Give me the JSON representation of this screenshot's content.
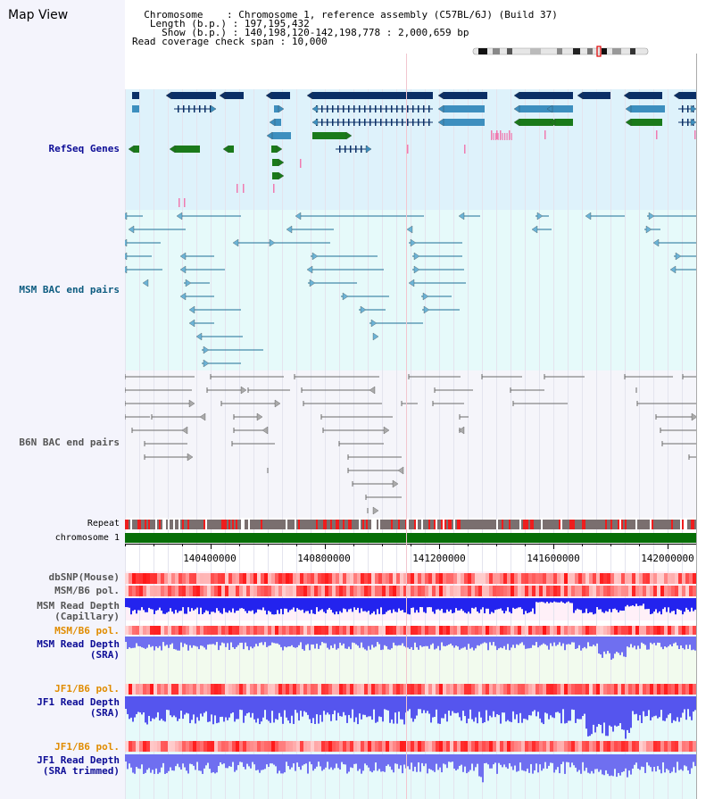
{
  "map_title": "Map View",
  "header": {
    "chromosome_label": "Chromosome",
    "chromosome_value": "Chromosome 1, reference assembly (C57BL/6J) (Build 37)",
    "length_label": "Length (b.p.)",
    "length_value": "197,195,432",
    "show_label": "Show (b.p.)",
    "show_value": "140,198,120-142,198,778 : 2,000,659 bp",
    "coverage_label": "Read coverage check span",
    "coverage_value": "10,000"
  },
  "tracks": {
    "refseq": "RefSeq Genes",
    "msm_bac": "MSM BAC end pairs",
    "b6n_bac": "B6N BAC end pairs",
    "repeat": "Repeat",
    "chromosome": "chromosome 1",
    "dbsnp": "dbSNP(Mouse)",
    "msm_b6_pol": "MSM/B6 pol.",
    "msm_depth_cap_1": "MSM Read Depth",
    "msm_depth_cap_2": "(Capillary)",
    "msm_b6_pol_2": "MSM/B6 pol.",
    "msm_depth_sra_1": "MSM Read Depth",
    "msm_depth_sra_2": "(SRA)",
    "jf1_b6_pol": "JF1/B6 pol.",
    "jf1_depth_sra_1": "JF1 Read Depth",
    "jf1_depth_sra_2": "(SRA)",
    "jf1_b6_pol_2": "JF1/B6 pol.",
    "jf1_depth_trim_1": "JF1 Read Depth",
    "jf1_depth_trim_2": "(SRA trimmed)"
  },
  "axis": {
    "ticks": [
      "140400000",
      "140800000",
      "141200000",
      "141600000",
      "142000000"
    ]
  },
  "colors": {
    "refseq_bg": "#def2fb",
    "msm_bg": "#e6fafa",
    "b6n_bg": "#f5f5fa",
    "gene_dark": "#0b2f66",
    "gene_mid": "#3d8fbf",
    "gene_green": "#1a7a1a",
    "bac_line": "#1c6f96",
    "b6n_line": "#6b6b6b",
    "pol_red": "#ff4c4c",
    "depth_blue": "#2323ee",
    "label_navy": "#0c0c96",
    "label_orange": "#e08c00"
  }
}
